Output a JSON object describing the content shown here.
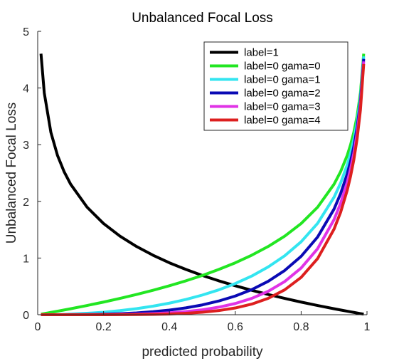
{
  "chart_data": {
    "type": "line",
    "title": "Unbalanced Focal Loss",
    "xlabel": "predicted probability",
    "ylabel": "Unbalanced Focal Loss",
    "xlim": [
      0,
      1
    ],
    "ylim": [
      0,
      5
    ],
    "x_ticks": [
      0,
      0.2,
      0.4,
      0.6,
      0.8,
      1
    ],
    "x_tick_labels": [
      "0",
      "0.2",
      "0.4",
      "0.6",
      "0.8",
      "1"
    ],
    "y_ticks": [
      0,
      1,
      2,
      3,
      4,
      5
    ],
    "y_tick_labels": [
      "0",
      "1",
      "2",
      "3",
      "4",
      "5"
    ],
    "grid": false,
    "legend_position": "top-right",
    "x": [
      0.01,
      0.02,
      0.04,
      0.06,
      0.08,
      0.1,
      0.15,
      0.2,
      0.25,
      0.3,
      0.35,
      0.4,
      0.45,
      0.5,
      0.55,
      0.6,
      0.65,
      0.7,
      0.75,
      0.8,
      0.85,
      0.9,
      0.92,
      0.94,
      0.95,
      0.96,
      0.97,
      0.98,
      0.99
    ],
    "series": [
      {
        "name": "label=1",
        "color": "#000000",
        "values": [
          4.605,
          3.912,
          3.219,
          2.813,
          2.526,
          2.303,
          1.897,
          1.609,
          1.386,
          1.204,
          1.05,
          0.916,
          0.799,
          0.693,
          0.598,
          0.511,
          0.431,
          0.357,
          0.288,
          0.223,
          0.163,
          0.105,
          0.083,
          0.062,
          0.051,
          0.041,
          0.03,
          0.02,
          0.01
        ]
      },
      {
        "name": "label=0 gama=0",
        "color": "#22e622",
        "values": [
          0.01,
          0.02,
          0.041,
          0.062,
          0.083,
          0.105,
          0.163,
          0.223,
          0.288,
          0.357,
          0.431,
          0.511,
          0.598,
          0.693,
          0.799,
          0.916,
          1.05,
          1.204,
          1.386,
          1.609,
          1.897,
          2.303,
          2.526,
          2.813,
          2.996,
          3.219,
          3.507,
          3.912,
          4.605
        ]
      },
      {
        "name": "label=0 gama=1",
        "color": "#33e5f0",
        "values": [
          0.0001,
          0.0004,
          0.0016,
          0.0037,
          0.0067,
          0.0105,
          0.0244,
          0.0446,
          0.0719,
          0.107,
          0.151,
          0.204,
          0.269,
          0.347,
          0.439,
          0.55,
          0.682,
          0.843,
          1.04,
          1.287,
          1.612,
          2.073,
          2.324,
          2.644,
          2.846,
          3.09,
          3.402,
          3.834,
          4.559
        ]
      },
      {
        "name": "label=0 gama=2",
        "color": "#0a0ab4",
        "values": [
          0.0,
          0.0,
          0.0001,
          0.0002,
          0.0005,
          0.0011,
          0.0037,
          0.0089,
          0.018,
          0.032,
          0.053,
          0.082,
          0.121,
          0.173,
          0.242,
          0.33,
          0.443,
          0.59,
          0.78,
          1.03,
          1.371,
          1.865,
          2.138,
          2.485,
          2.704,
          2.966,
          3.3,
          3.757,
          4.514
        ]
      },
      {
        "name": "label=0 gama=3",
        "color": "#e033e6",
        "values": [
          0.0,
          0.0,
          0.0,
          0.0,
          0.0,
          0.0001,
          0.0006,
          0.0018,
          0.0045,
          0.0096,
          0.0185,
          0.0327,
          0.0545,
          0.0866,
          0.133,
          0.198,
          0.288,
          0.413,
          0.585,
          0.824,
          1.165,
          1.679,
          1.967,
          2.336,
          2.568,
          2.847,
          3.201,
          3.682,
          4.469
        ]
      },
      {
        "name": "label=0 gama=4",
        "color": "#dd1f1f",
        "values": [
          0.0,
          0.0,
          0.0,
          0.0,
          0.0,
          0.0,
          0.0001,
          0.0004,
          0.0011,
          0.0029,
          0.0065,
          0.0131,
          0.0245,
          0.0433,
          0.0732,
          0.119,
          0.187,
          0.289,
          0.439,
          0.659,
          0.99,
          1.511,
          1.809,
          2.196,
          2.44,
          2.733,
          3.105,
          3.608,
          4.424
        ]
      }
    ]
  }
}
